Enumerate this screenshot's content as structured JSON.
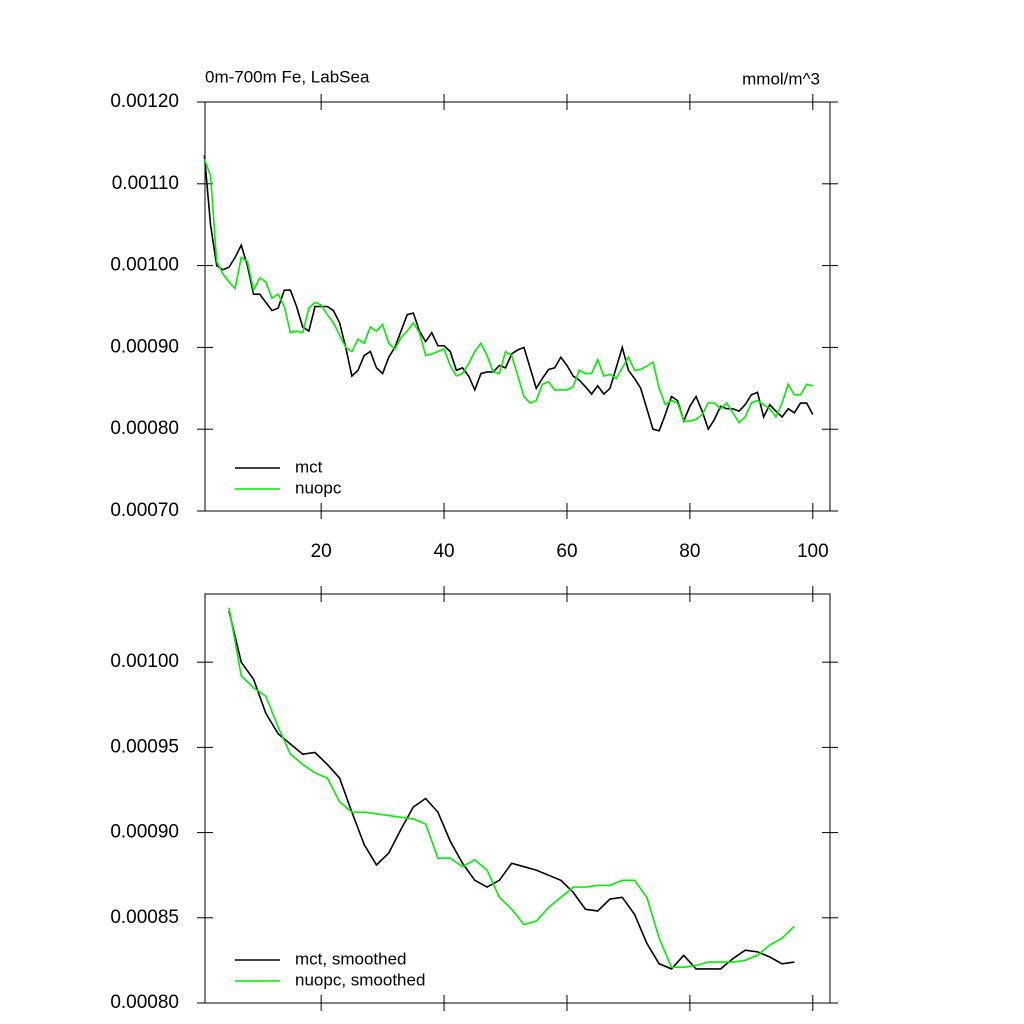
{
  "chart_data": [
    {
      "type": "line",
      "title": "0m-700m Fe, LabSea",
      "units": "mmol/m^3",
      "legend": "lower left",
      "xlim": [
        1.1,
        102.8
      ],
      "xticks": [
        20,
        40,
        60,
        80,
        100
      ],
      "ylim": [
        0.0007,
        0.0012
      ],
      "yticks": [
        {
          "value": 0.0007,
          "label": "0.00070"
        },
        {
          "value": 0.0008,
          "label": "0.00080"
        },
        {
          "value": 0.0009,
          "label": "0.00090"
        },
        {
          "value": 0.001,
          "label": "0.00100"
        },
        {
          "value": 0.0011,
          "label": "0.00110"
        },
        {
          "value": 0.0012,
          "label": "0.00120"
        }
      ],
      "x": [
        1,
        2,
        3,
        4,
        5,
        6,
        7,
        8,
        9,
        10,
        11,
        12,
        13,
        14,
        15,
        16,
        17,
        18,
        19,
        20,
        21,
        22,
        23,
        24,
        25,
        26,
        27,
        28,
        29,
        30,
        31,
        32,
        33,
        34,
        35,
        36,
        37,
        38,
        39,
        40,
        41,
        42,
        43,
        44,
        45,
        46,
        47,
        48,
        49,
        50,
        51,
        52,
        53,
        54,
        55,
        56,
        57,
        58,
        59,
        60,
        61,
        62,
        63,
        64,
        65,
        66,
        67,
        68,
        69,
        70,
        71,
        72,
        73,
        74,
        75,
        76,
        77,
        78,
        79,
        80,
        81,
        82,
        83,
        84,
        85,
        86,
        87,
        88,
        89,
        90,
        91,
        92,
        93,
        94,
        95,
        96,
        97,
        98,
        99,
        100
      ],
      "series": [
        {
          "name": "mct",
          "color": "#000000",
          "values": [
            0.001135,
            0.00105,
            0.001,
            0.000995,
            0.000998,
            0.00101,
            0.001025,
            0.001,
            0.000965,
            0.000965,
            0.000955,
            0.000945,
            0.000948,
            0.00097,
            0.00097,
            0.00095,
            0.000925,
            0.00092,
            0.00095,
            0.00095,
            0.00095,
            0.000945,
            0.00093,
            0.0009,
            0.000865,
            0.000872,
            0.00089,
            0.000895,
            0.000875,
            0.000868,
            0.000888,
            0.0009,
            0.00092,
            0.00094,
            0.000942,
            0.00092,
            0.000907,
            0.000918,
            0.000902,
            0.000902,
            0.000895,
            0.000872,
            0.000875,
            0.000865,
            0.000848,
            0.000868,
            0.00087,
            0.00087,
            0.000878,
            0.000875,
            0.000892,
            0.000897,
            0.0009,
            0.000875,
            0.00085,
            0.000862,
            0.000873,
            0.000875,
            0.000888,
            0.000878,
            0.000865,
            0.00086,
            0.000852,
            0.000843,
            0.000853,
            0.000843,
            0.00085,
            0.000875,
            0.0009,
            0.000872,
            0.000862,
            0.00085,
            0.000825,
            0.0008,
            0.000798,
            0.000818,
            0.00084,
            0.000835,
            0.00081,
            0.000828,
            0.00084,
            0.000822,
            0.0008,
            0.000812,
            0.000828,
            0.000825,
            0.000825,
            0.000822,
            0.00083,
            0.000842,
            0.000845,
            0.000815,
            0.00083,
            0.000822,
            0.000815,
            0.000825,
            0.00082,
            0.000832,
            0.000832,
            0.000818
          ]
        },
        {
          "name": "nuopc",
          "color": "#00ee00",
          "values": [
            0.00113,
            0.00111,
            0.001005,
            0.00099,
            0.00098,
            0.000972,
            0.00101,
            0.001005,
            0.00097,
            0.000985,
            0.00098,
            0.00096,
            0.000965,
            0.00095,
            0.000918,
            0.00092,
            0.000918,
            0.000948,
            0.000955,
            0.000952,
            0.00094,
            0.00093,
            0.000915,
            0.0009,
            0.000895,
            0.00091,
            0.000905,
            0.000925,
            0.00092,
            0.000928,
            0.000905,
            0.000898,
            0.000912,
            0.00092,
            0.00093,
            0.000918,
            0.00089,
            0.000892,
            0.000895,
            0.000898,
            0.000878,
            0.000865,
            0.000868,
            0.00088,
            0.000895,
            0.000905,
            0.00089,
            0.00087,
            0.000868,
            0.000895,
            0.00089,
            0.000865,
            0.00084,
            0.000832,
            0.000835,
            0.000855,
            0.000858,
            0.000848,
            0.000848,
            0.000848,
            0.000852,
            0.000872,
            0.000868,
            0.000868,
            0.000885,
            0.000865,
            0.000867,
            0.000862,
            0.000875,
            0.000888,
            0.000872,
            0.000873,
            0.000877,
            0.000882,
            0.00085,
            0.00083,
            0.000835,
            0.000832,
            0.00081,
            0.00081,
            0.000812,
            0.000818,
            0.000832,
            0.000832,
            0.000825,
            0.000832,
            0.00082,
            0.000808,
            0.000815,
            0.000832,
            0.000835,
            0.00083,
            0.000825,
            0.000815,
            0.000832,
            0.000855,
            0.000842,
            0.000842,
            0.000855,
            0.000853
          ]
        }
      ]
    },
    {
      "type": "line",
      "legend": "lower left",
      "xlim": [
        1.1,
        102.8
      ],
      "xticks": [
        20,
        40,
        60,
        80,
        100
      ],
      "ylim": [
        0.0008,
        0.00104
      ],
      "yticks": [
        {
          "value": 0.0008,
          "label": "0.00080"
        },
        {
          "value": 0.00085,
          "label": "0.00085"
        },
        {
          "value": 0.0009,
          "label": "0.00090"
        },
        {
          "value": 0.00095,
          "label": "0.00095"
        },
        {
          "value": 0.001,
          "label": "0.00100"
        }
      ],
      "x": [
        5,
        7,
        9,
        11,
        13,
        15,
        17,
        19,
        21,
        23,
        25,
        27,
        29,
        31,
        33,
        35,
        37,
        39,
        41,
        43,
        45,
        47,
        49,
        51,
        53,
        55,
        57,
        59,
        61,
        63,
        65,
        67,
        69,
        71,
        73,
        75,
        77,
        79,
        81,
        83,
        85,
        87,
        89,
        91,
        93,
        95,
        97
      ],
      "series": [
        {
          "name": "mct, smoothed",
          "color": "#000000",
          "values": [
            0.00103,
            0.001,
            0.00099,
            0.00097,
            0.000958,
            0.000952,
            0.000946,
            0.000947,
            0.00094,
            0.000932,
            0.000912,
            0.000893,
            0.000881,
            0.000888,
            0.000902,
            0.000915,
            0.00092,
            0.000912,
            0.000895,
            0.000882,
            0.000872,
            0.000868,
            0.000872,
            0.000882,
            0.00088,
            0.000878,
            0.000875,
            0.000872,
            0.000865,
            0.000855,
            0.000854,
            0.000861,
            0.000862,
            0.000852,
            0.000835,
            0.000823,
            0.00082,
            0.000828,
            0.00082,
            0.00082,
            0.00082,
            0.000826,
            0.000831,
            0.00083,
            0.000827,
            0.000823,
            0.000824
          ]
        },
        {
          "name": "nuopc, smoothed",
          "color": "#00ee00",
          "values": [
            0.001032,
            0.000992,
            0.000985,
            0.00098,
            0.000962,
            0.000946,
            0.00094,
            0.000935,
            0.000932,
            0.000918,
            0.000912,
            0.000912,
            0.000911,
            0.00091,
            0.000909,
            0.000908,
            0.000905,
            0.000885,
            0.000885,
            0.00088,
            0.000884,
            0.000878,
            0.000862,
            0.000855,
            0.000846,
            0.000848,
            0.000856,
            0.000862,
            0.000868,
            0.000868,
            0.000869,
            0.000869,
            0.000872,
            0.000872,
            0.000862,
            0.000838,
            0.000821,
            0.000821,
            0.000822,
            0.000824,
            0.000824,
            0.000824,
            0.000825,
            0.000828,
            0.000834,
            0.000838,
            0.000845
          ]
        }
      ]
    }
  ]
}
